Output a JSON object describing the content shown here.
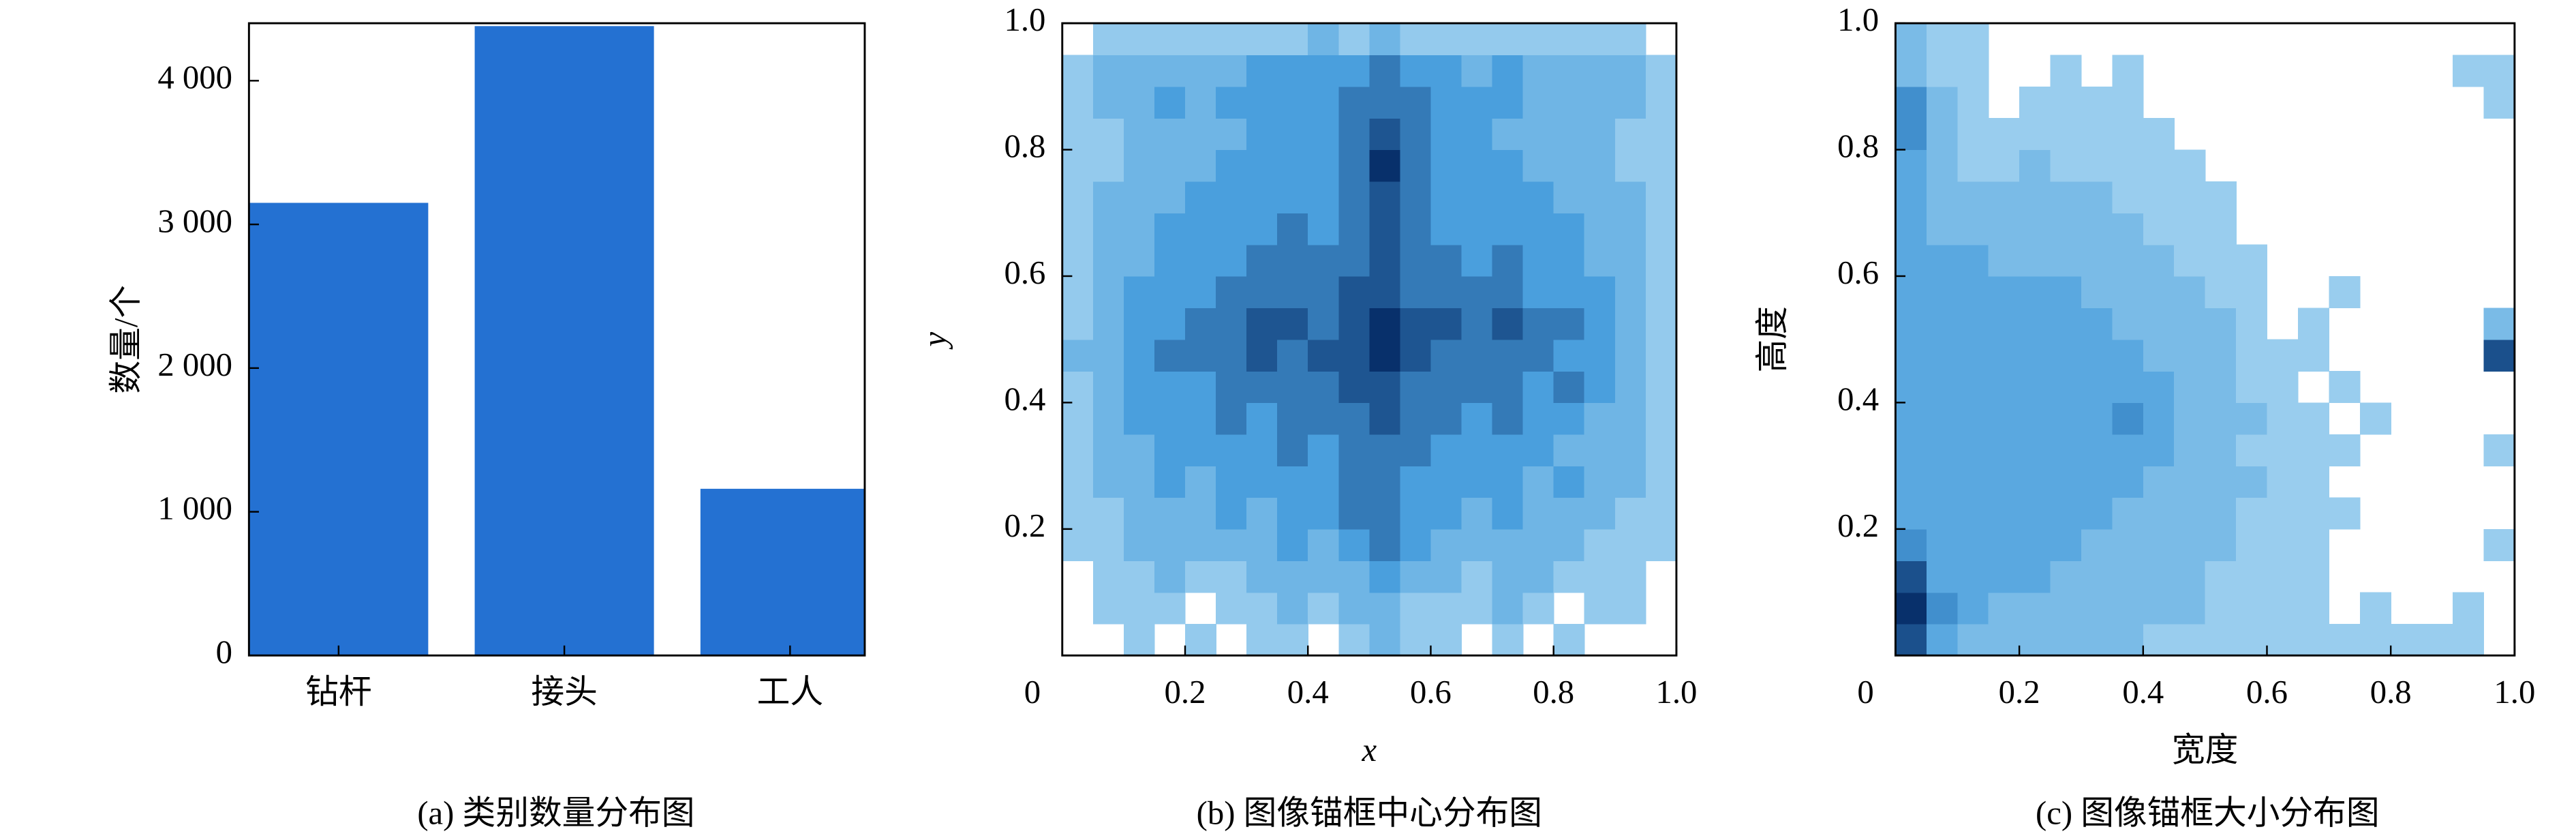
{
  "chart_data": [
    {
      "type": "bar",
      "title": "(a) 类别数量分布图",
      "ylabel": "数量/个",
      "categories": [
        "钻杆",
        "接头",
        "工人"
      ],
      "values": [
        3150,
        4380,
        1160
      ],
      "color": "#2471d2",
      "ylim": [
        0,
        4400
      ],
      "yticks": [
        0,
        {
          "value": 1000,
          "label": "1 000"
        },
        {
          "value": 2000,
          "label": "2 000"
        },
        {
          "value": 3000,
          "label": "3 000"
        },
        {
          "value": 4000,
          "label": "4 000"
        }
      ],
      "grid": false
    },
    {
      "type": "heatmap",
      "title": "(b) 图像锚框中心分布图",
      "xlabel": "x",
      "ylabel": "y",
      "xlim": [
        0,
        1
      ],
      "ylim": [
        0,
        1
      ],
      "xticks": [
        0,
        0.2,
        0.4,
        0.6,
        0.8,
        {
          "value": 1,
          "label": "1.0"
        }
      ],
      "yticks": [
        0.2,
        0.4,
        0.6,
        0.8,
        {
          "value": 1,
          "label": "1.0"
        }
      ],
      "colors": [
        "#b9e0f5",
        "#4a9fdd",
        "#08306b"
      ],
      "x_bins": [
        0,
        0.05,
        0.1,
        0.15,
        0.2,
        0.25,
        0.3,
        0.35,
        0.4,
        0.45,
        0.5,
        0.55,
        0.6,
        0.65,
        0.7,
        0.75,
        0.8,
        0.85,
        0.9,
        0.95,
        1
      ],
      "y_bins": [
        0,
        0.05,
        0.1,
        0.15,
        0.2,
        0.25,
        0.3,
        0.35,
        0.4,
        0.45,
        0.5,
        0.55,
        0.6,
        0.65,
        0.7,
        0.75,
        0.8,
        0.85,
        0.9,
        0.95,
        1
      ],
      "counts": [
        [
          0,
          0,
          1,
          0,
          1,
          0,
          1,
          1,
          0,
          1,
          2,
          1,
          1,
          0,
          1,
          0,
          1,
          0,
          0,
          0
        ],
        [
          0,
          1,
          1,
          1,
          0,
          1,
          1,
          2,
          1,
          2,
          2,
          1,
          1,
          1,
          2,
          1,
          0,
          1,
          1,
          0
        ],
        [
          0,
          1,
          1,
          2,
          1,
          1,
          2,
          2,
          2,
          2,
          3,
          2,
          2,
          1,
          2,
          2,
          1,
          1,
          1,
          0
        ],
        [
          1,
          1,
          2,
          2,
          2,
          2,
          2,
          3,
          2,
          3,
          4,
          3,
          2,
          2,
          2,
          2,
          2,
          1,
          1,
          1
        ],
        [
          1,
          1,
          2,
          2,
          2,
          3,
          2,
          3,
          3,
          4,
          4,
          3,
          3,
          2,
          3,
          2,
          2,
          2,
          1,
          1
        ],
        [
          1,
          2,
          2,
          3,
          2,
          3,
          3,
          3,
          3,
          4,
          4,
          3,
          3,
          3,
          3,
          2,
          3,
          2,
          2,
          1
        ],
        [
          1,
          2,
          2,
          3,
          3,
          3,
          3,
          4,
          3,
          4,
          4,
          4,
          3,
          3,
          3,
          3,
          2,
          2,
          2,
          1
        ],
        [
          1,
          2,
          3,
          3,
          3,
          4,
          3,
          4,
          4,
          4,
          5,
          4,
          4,
          3,
          4,
          3,
          3,
          2,
          2,
          1
        ],
        [
          1,
          2,
          3,
          3,
          3,
          4,
          4,
          4,
          4,
          5,
          5,
          4,
          4,
          4,
          4,
          3,
          4,
          3,
          2,
          1
        ],
        [
          2,
          2,
          3,
          4,
          4,
          4,
          5,
          4,
          5,
          5,
          6,
          5,
          4,
          4,
          4,
          4,
          3,
          3,
          2,
          1
        ],
        [
          1,
          2,
          3,
          3,
          4,
          4,
          5,
          5,
          4,
          5,
          6,
          5,
          5,
          4,
          5,
          4,
          4,
          3,
          2,
          1
        ],
        [
          1,
          2,
          3,
          3,
          3,
          4,
          4,
          4,
          4,
          5,
          5,
          4,
          4,
          4,
          4,
          3,
          3,
          3,
          2,
          1
        ],
        [
          1,
          2,
          2,
          3,
          3,
          3,
          4,
          4,
          4,
          4,
          5,
          4,
          4,
          3,
          4,
          3,
          3,
          2,
          2,
          1
        ],
        [
          1,
          2,
          2,
          3,
          3,
          3,
          3,
          4,
          3,
          4,
          5,
          4,
          3,
          3,
          3,
          3,
          3,
          2,
          2,
          1
        ],
        [
          1,
          2,
          2,
          2,
          3,
          3,
          3,
          3,
          3,
          4,
          5,
          4,
          3,
          3,
          3,
          3,
          2,
          2,
          2,
          1
        ],
        [
          1,
          1,
          2,
          2,
          2,
          3,
          3,
          3,
          3,
          4,
          6,
          4,
          3,
          3,
          3,
          2,
          2,
          2,
          1,
          1
        ],
        [
          1,
          1,
          2,
          2,
          2,
          2,
          3,
          3,
          3,
          4,
          5,
          4,
          3,
          3,
          2,
          2,
          2,
          2,
          1,
          1
        ],
        [
          1,
          2,
          2,
          3,
          2,
          3,
          3,
          3,
          3,
          4,
          4,
          4,
          3,
          3,
          3,
          2,
          2,
          2,
          2,
          1
        ],
        [
          1,
          2,
          2,
          2,
          2,
          2,
          3,
          3,
          3,
          3,
          4,
          3,
          3,
          2,
          3,
          2,
          2,
          2,
          2,
          1
        ],
        [
          0,
          1,
          1,
          1,
          1,
          1,
          1,
          1,
          2,
          1,
          2,
          1,
          1,
          1,
          1,
          1,
          1,
          1,
          1,
          0
        ]
      ]
    },
    {
      "type": "heatmap",
      "title": "(c) 图像锚框大小分布图",
      "xlabel": "宽度",
      "ylabel": "高度",
      "xlim": [
        0,
        1
      ],
      "ylim": [
        0,
        1
      ],
      "xticks": [
        0,
        0.2,
        0.4,
        0.6,
        0.8,
        {
          "value": 1,
          "label": "1.0"
        }
      ],
      "yticks": [
        0.2,
        0.4,
        0.6,
        0.8,
        {
          "value": 1,
          "label": "1.0"
        }
      ],
      "colors": [
        "#b9e0f5",
        "#4a9fdd",
        "#08306b"
      ],
      "x_bins": [
        0,
        0.05,
        0.1,
        0.15,
        0.2,
        0.25,
        0.3,
        0.35,
        0.4,
        0.45,
        0.5,
        0.55,
        0.6,
        0.65,
        0.7,
        0.75,
        0.8,
        0.85,
        0.9,
        0.95,
        1
      ],
      "y_bins": [
        0,
        0.05,
        0.1,
        0.15,
        0.2,
        0.25,
        0.3,
        0.35,
        0.4,
        0.45,
        0.5,
        0.55,
        0.6,
        0.65,
        0.7,
        0.75,
        0.8,
        0.85,
        0.9,
        0.95,
        1
      ],
      "counts": [
        [
          6,
          3,
          2,
          2,
          2,
          2,
          2,
          2,
          1,
          1,
          1,
          1,
          1,
          1,
          1,
          1,
          1,
          1,
          1,
          0
        ],
        [
          7,
          4,
          3,
          2,
          2,
          2,
          2,
          2,
          2,
          2,
          1,
          1,
          1,
          1,
          0,
          1,
          0,
          0,
          1,
          0
        ],
        [
          6,
          3,
          3,
          3,
          3,
          2,
          2,
          2,
          2,
          2,
          1,
          1,
          1,
          1,
          0,
          0,
          0,
          0,
          0,
          0
        ],
        [
          4,
          3,
          3,
          3,
          3,
          3,
          2,
          2,
          2,
          2,
          2,
          1,
          1,
          1,
          0,
          0,
          0,
          0,
          0,
          1
        ],
        [
          3,
          3,
          3,
          3,
          3,
          3,
          3,
          2,
          2,
          2,
          2,
          1,
          1,
          1,
          1,
          0,
          0,
          0,
          0,
          0
        ],
        [
          3,
          3,
          3,
          3,
          3,
          3,
          3,
          3,
          2,
          2,
          2,
          2,
          1,
          1,
          0,
          0,
          0,
          0,
          0,
          0
        ],
        [
          3,
          3,
          3,
          3,
          3,
          3,
          3,
          3,
          3,
          2,
          2,
          1,
          1,
          1,
          1,
          0,
          0,
          0,
          0,
          1
        ],
        [
          3,
          3,
          3,
          3,
          3,
          3,
          3,
          4,
          3,
          2,
          2,
          2,
          1,
          1,
          0,
          1,
          0,
          0,
          0,
          0
        ],
        [
          3,
          3,
          3,
          3,
          3,
          3,
          3,
          3,
          3,
          2,
          2,
          1,
          1,
          0,
          1,
          0,
          0,
          0,
          0,
          0
        ],
        [
          3,
          3,
          3,
          3,
          3,
          3,
          3,
          3,
          2,
          2,
          2,
          1,
          1,
          1,
          0,
          0,
          0,
          0,
          0,
          6
        ],
        [
          3,
          3,
          3,
          3,
          3,
          3,
          3,
          2,
          2,
          2,
          2,
          1,
          0,
          1,
          0,
          0,
          0,
          0,
          0,
          2
        ],
        [
          3,
          3,
          3,
          3,
          3,
          3,
          2,
          2,
          2,
          2,
          1,
          1,
          0,
          0,
          1,
          0,
          0,
          0,
          0,
          0
        ],
        [
          3,
          3,
          3,
          2,
          2,
          2,
          2,
          2,
          2,
          1,
          1,
          1,
          0,
          0,
          0,
          0,
          0,
          0,
          0,
          0
        ],
        [
          3,
          2,
          2,
          2,
          2,
          2,
          2,
          2,
          1,
          1,
          1,
          0,
          0,
          0,
          0,
          0,
          0,
          0,
          0,
          0
        ],
        [
          3,
          2,
          2,
          2,
          2,
          2,
          2,
          1,
          1,
          1,
          1,
          0,
          0,
          0,
          0,
          0,
          0,
          0,
          0,
          0
        ],
        [
          3,
          2,
          1,
          1,
          2,
          1,
          1,
          1,
          1,
          1,
          0,
          0,
          0,
          0,
          0,
          0,
          0,
          0,
          0,
          0
        ],
        [
          4,
          2,
          1,
          1,
          1,
          1,
          1,
          1,
          1,
          0,
          0,
          0,
          0,
          0,
          0,
          0,
          0,
          0,
          0,
          0
        ],
        [
          4,
          2,
          1,
          0,
          1,
          1,
          1,
          1,
          0,
          0,
          0,
          0,
          0,
          0,
          0,
          0,
          0,
          0,
          0,
          1
        ],
        [
          2,
          1,
          1,
          0,
          0,
          1,
          0,
          1,
          0,
          0,
          0,
          0,
          0,
          0,
          0,
          0,
          0,
          0,
          1,
          1
        ],
        [
          2,
          1,
          1,
          0,
          0,
          0,
          0,
          0,
          0,
          0,
          0,
          0,
          0,
          0,
          0,
          0,
          0,
          0,
          0,
          0
        ]
      ]
    }
  ]
}
